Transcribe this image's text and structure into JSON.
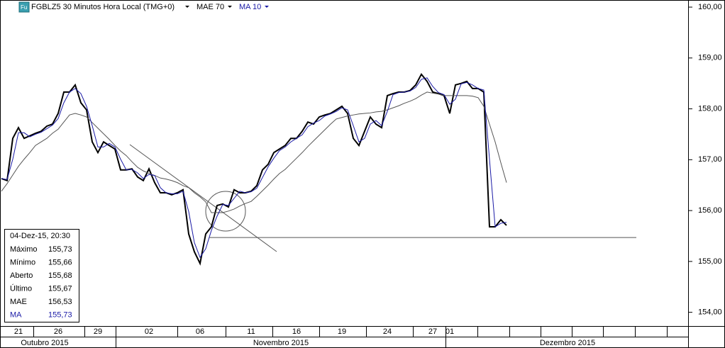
{
  "chart_data": {
    "type": "line",
    "title": "FGBLZ5 30 Minutos Hora Local (TMG+0)",
    "categories": [
      null,
      null,
      null,
      "21",
      null,
      null,
      null,
      null,
      null,
      null,
      "26",
      null,
      null,
      null,
      null,
      null,
      null,
      "29",
      null,
      null,
      null,
      null,
      null,
      null,
      null,
      null,
      "02",
      null,
      null,
      null,
      null,
      null,
      null,
      null,
      null,
      "06",
      null,
      null,
      null,
      null,
      null,
      null,
      null,
      null,
      "11",
      null,
      null,
      null,
      null,
      null,
      null,
      null,
      "16",
      null,
      null,
      null,
      null,
      null,
      null,
      null,
      "19",
      null,
      null,
      null,
      null,
      null,
      null,
      null,
      "24",
      null,
      null,
      null,
      null,
      null,
      null,
      null,
      "27",
      null,
      null,
      "01",
      null,
      null,
      null,
      null,
      null,
      null,
      null,
      null,
      null,
      null
    ],
    "month_labels": [
      "Outubro 2015",
      "Novembro 2015",
      "Dezembro 2015"
    ],
    "series": [
      {
        "name": "FGBLZ5 30 Minutos Hora Local (TMG+0)",
        "color": "#000000",
        "values": [
          156.63,
          156.59,
          157.42,
          157.63,
          157.42,
          157.47,
          157.52,
          157.56,
          157.66,
          157.7,
          157.91,
          158.33,
          158.33,
          158.47,
          158.12,
          157.98,
          157.35,
          157.14,
          157.35,
          157.28,
          157.21,
          156.8,
          156.8,
          156.82,
          156.66,
          156.59,
          156.82,
          156.55,
          156.35,
          156.35,
          156.31,
          156.35,
          156.41,
          155.54,
          155.19,
          154.96,
          155.54,
          155.68,
          156.1,
          156.13,
          156.07,
          156.41,
          156.35,
          156.35,
          156.38,
          156.49,
          156.8,
          156.91,
          157.14,
          157.21,
          157.28,
          157.42,
          157.42,
          157.56,
          157.74,
          157.7,
          157.84,
          157.88,
          157.91,
          157.98,
          158.05,
          157.91,
          157.42,
          157.28,
          157.56,
          157.84,
          157.7,
          157.63,
          158.26,
          158.3,
          158.33,
          158.33,
          158.36,
          158.47,
          158.68,
          158.54,
          158.33,
          158.3,
          158.26,
          157.91,
          158.47,
          158.5,
          158.54,
          158.4,
          158.4,
          158.33,
          155.68,
          155.68,
          155.82,
          155.71
        ]
      },
      {
        "name": "MAE 70",
        "color": "#555555",
        "values": [
          156.38,
          156.53,
          156.7,
          156.87,
          157.01,
          157.14,
          157.28,
          157.35,
          157.42,
          157.52,
          157.6,
          157.74,
          157.88,
          157.91,
          157.88,
          157.84,
          157.73,
          157.62,
          157.51,
          157.4,
          157.28,
          157.17,
          157.08,
          156.96,
          156.85,
          156.78,
          156.73,
          156.69,
          156.64,
          156.62,
          156.59,
          156.55,
          156.49,
          156.45,
          156.35,
          156.27,
          156.17,
          155.96,
          155.96,
          155.96,
          155.99,
          156.03,
          156.09,
          156.14,
          156.18,
          156.28,
          156.39,
          156.5,
          156.62,
          156.73,
          156.81,
          156.92,
          157.03,
          157.14,
          157.26,
          157.37,
          157.48,
          157.59,
          157.7,
          157.8,
          157.83,
          157.86,
          157.88,
          157.9,
          157.91,
          157.92,
          157.94,
          157.95,
          157.98,
          158.02,
          158.06,
          158.11,
          158.15,
          158.2,
          158.27,
          158.33,
          158.31,
          158.29,
          158.26,
          158.26,
          158.26,
          158.26,
          158.26,
          158.25,
          158.22,
          158.05,
          157.7,
          157.35,
          156.94,
          156.55
        ]
      },
      {
        "name": "MA 10",
        "color": "#1a1aa6",
        "values": [
          156.63,
          156.61,
          157.01,
          157.53,
          157.53,
          157.45,
          157.5,
          157.54,
          157.61,
          157.68,
          157.81,
          158.12,
          158.33,
          158.4,
          158.3,
          158.05,
          157.67,
          157.25,
          157.25,
          157.32,
          157.25,
          157.01,
          156.8,
          156.81,
          156.74,
          156.63,
          156.71,
          156.69,
          156.45,
          156.35,
          156.33,
          156.33,
          156.38,
          155.98,
          155.37,
          155.08,
          155.25,
          155.61,
          155.89,
          156.12,
          156.1,
          156.24,
          156.38,
          156.35,
          156.37,
          156.44,
          156.65,
          156.86,
          157.03,
          157.18,
          157.25,
          157.35,
          157.42,
          157.49,
          157.65,
          157.72,
          157.77,
          157.86,
          157.9,
          157.95,
          158.02,
          157.98,
          157.67,
          157.35,
          157.42,
          157.7,
          157.77,
          157.67,
          157.95,
          158.28,
          158.32,
          158.33,
          158.35,
          158.42,
          158.58,
          158.61,
          158.44,
          158.32,
          158.28,
          158.09,
          158.19,
          158.49,
          158.52,
          158.47,
          158.4,
          158.37,
          157.01,
          155.68,
          155.75,
          155.77
        ]
      }
    ],
    "ylim": [
      153.73,
      160.14
    ],
    "yticks": [
      {
        "value": 154,
        "label": "154,00"
      },
      {
        "value": 155,
        "label": "155,00"
      },
      {
        "value": 156,
        "label": "156,00"
      },
      {
        "value": 157,
        "label": "157,00"
      },
      {
        "value": 158,
        "label": "158,00"
      },
      {
        "value": 159,
        "label": "159,00"
      },
      {
        "value": 160,
        "label": "160,00"
      }
    ],
    "reference_line": 155.47,
    "info_box": {
      "title": "04-Dez-15, 20:30",
      "rows": [
        [
          "Máximo",
          "155,73"
        ],
        [
          "Mínimo",
          "155,66"
        ],
        [
          "Aberto",
          "155,68"
        ],
        [
          "Último",
          "155,67"
        ],
        [
          "MAE",
          "156,53"
        ],
        [
          "MA",
          "155,73"
        ]
      ]
    }
  }
}
